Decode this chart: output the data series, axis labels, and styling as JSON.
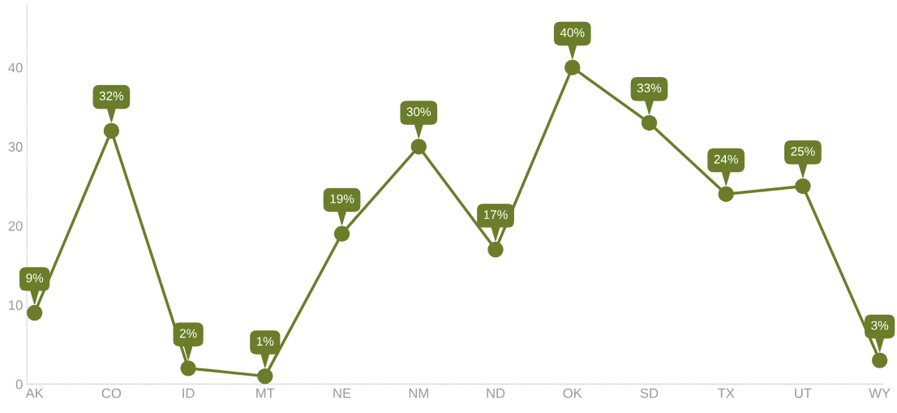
{
  "chart_data": {
    "type": "line",
    "categories": [
      "AK",
      "CO",
      "ID",
      "MT",
      "NE",
      "NM",
      "ND",
      "OK",
      "SD",
      "TX",
      "UT",
      "WY"
    ],
    "series": [
      {
        "color": "#6b7d2a",
        "values": [
          9,
          32,
          2,
          1,
          19,
          30,
          17,
          40,
          33,
          24,
          25,
          3
        ],
        "value_labels": [
          "9%",
          "32%",
          "2%",
          "1%",
          "19%",
          "30%",
          "17%",
          "40%",
          "33%",
          "24%",
          "25%",
          "3%"
        ]
      }
    ],
    "ylim": [
      0,
      48
    ],
    "yticks": [
      0,
      10,
      20,
      30,
      40
    ],
    "grid": false,
    "marker": "circle",
    "line_style": "solid"
  }
}
